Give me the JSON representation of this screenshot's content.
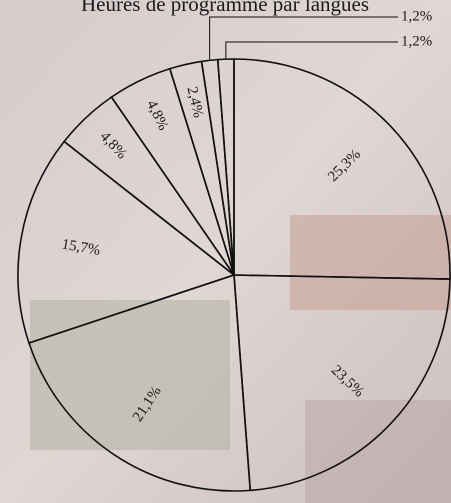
{
  "chart_data": {
    "type": "pie",
    "title": "Heures de programme par langues",
    "values": [
      25.3,
      23.5,
      21.1,
      15.7,
      4.8,
      4.8,
      2.4,
      1.2,
      1.2
    ],
    "value_labels": [
      "25,3%",
      "23,5%",
      "21,1%",
      "15,7%",
      "4,8%",
      "4,8%",
      "2,4%",
      "1,2%",
      "1,2%"
    ]
  }
}
